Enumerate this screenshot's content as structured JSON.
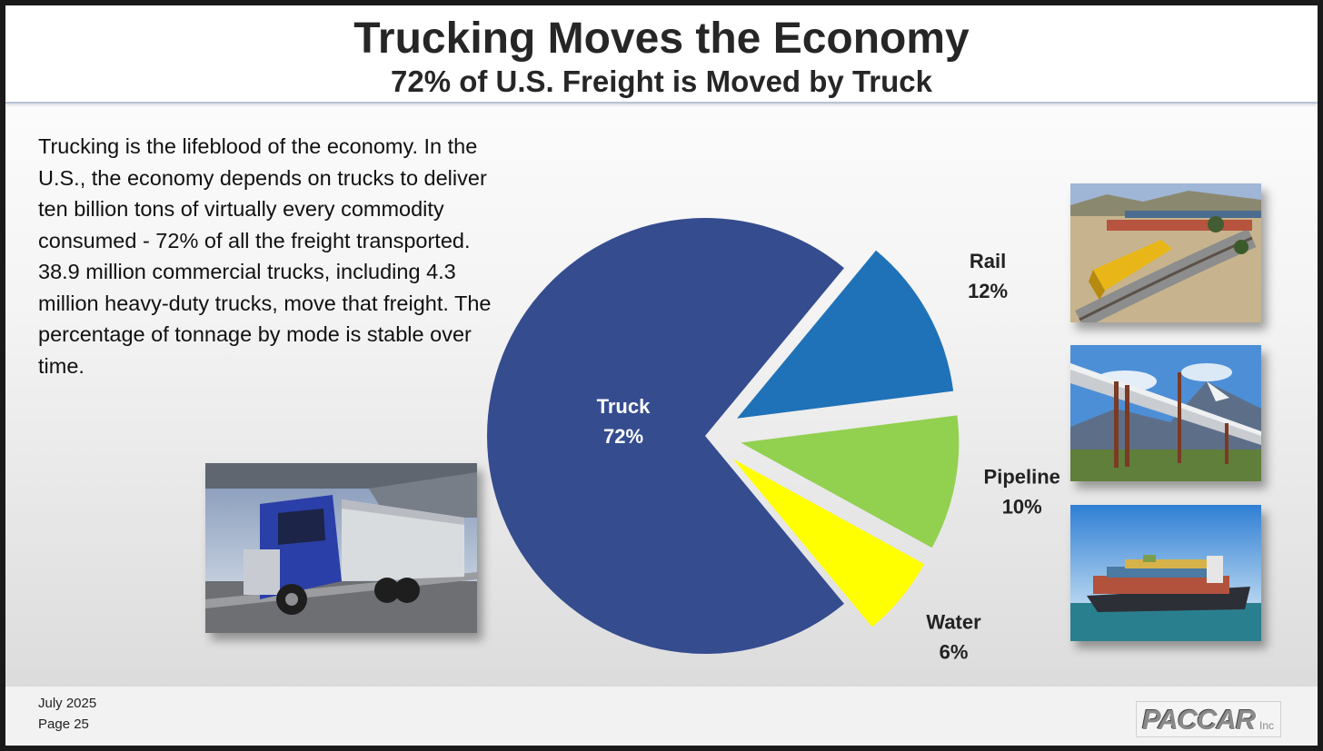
{
  "header": {
    "title": "Trucking Moves the Economy",
    "subtitle": "72% of U.S. Freight is Moved by Truck"
  },
  "body": {
    "paragraph1": "Trucking is the lifeblood of the economy.  In the U.S., the economy depends on trucks to deliver ten billion tons of virtually every commodity consumed - 72% of all the freight transported.",
    "paragraph2": "38.9 million commercial trucks, including 4.3 million heavy-duty trucks, move that freight. The percentage of tonnage by mode is stable over time."
  },
  "chart_data": {
    "type": "pie",
    "categories": [
      "Truck",
      "Rail",
      "Pipeline",
      "Water"
    ],
    "values": [
      72,
      12,
      10,
      6
    ],
    "labels": [
      "72%",
      "12%",
      "10%",
      "6%"
    ],
    "colors": [
      "#354c8f",
      "#1f72b8",
      "#92d050",
      "#ffff00"
    ],
    "exploded": [
      "Rail",
      "Pipeline",
      "Water"
    ],
    "title": "",
    "legend": "none"
  },
  "photos": {
    "truck": "truck-photo",
    "rail": "train-photo",
    "pipeline": "pipeline-photo",
    "water": "container-ship-photo"
  },
  "footer": {
    "date": "July 2025",
    "page": "Page 25",
    "logo": "PACCAR",
    "logo_suffix": "Inc"
  }
}
